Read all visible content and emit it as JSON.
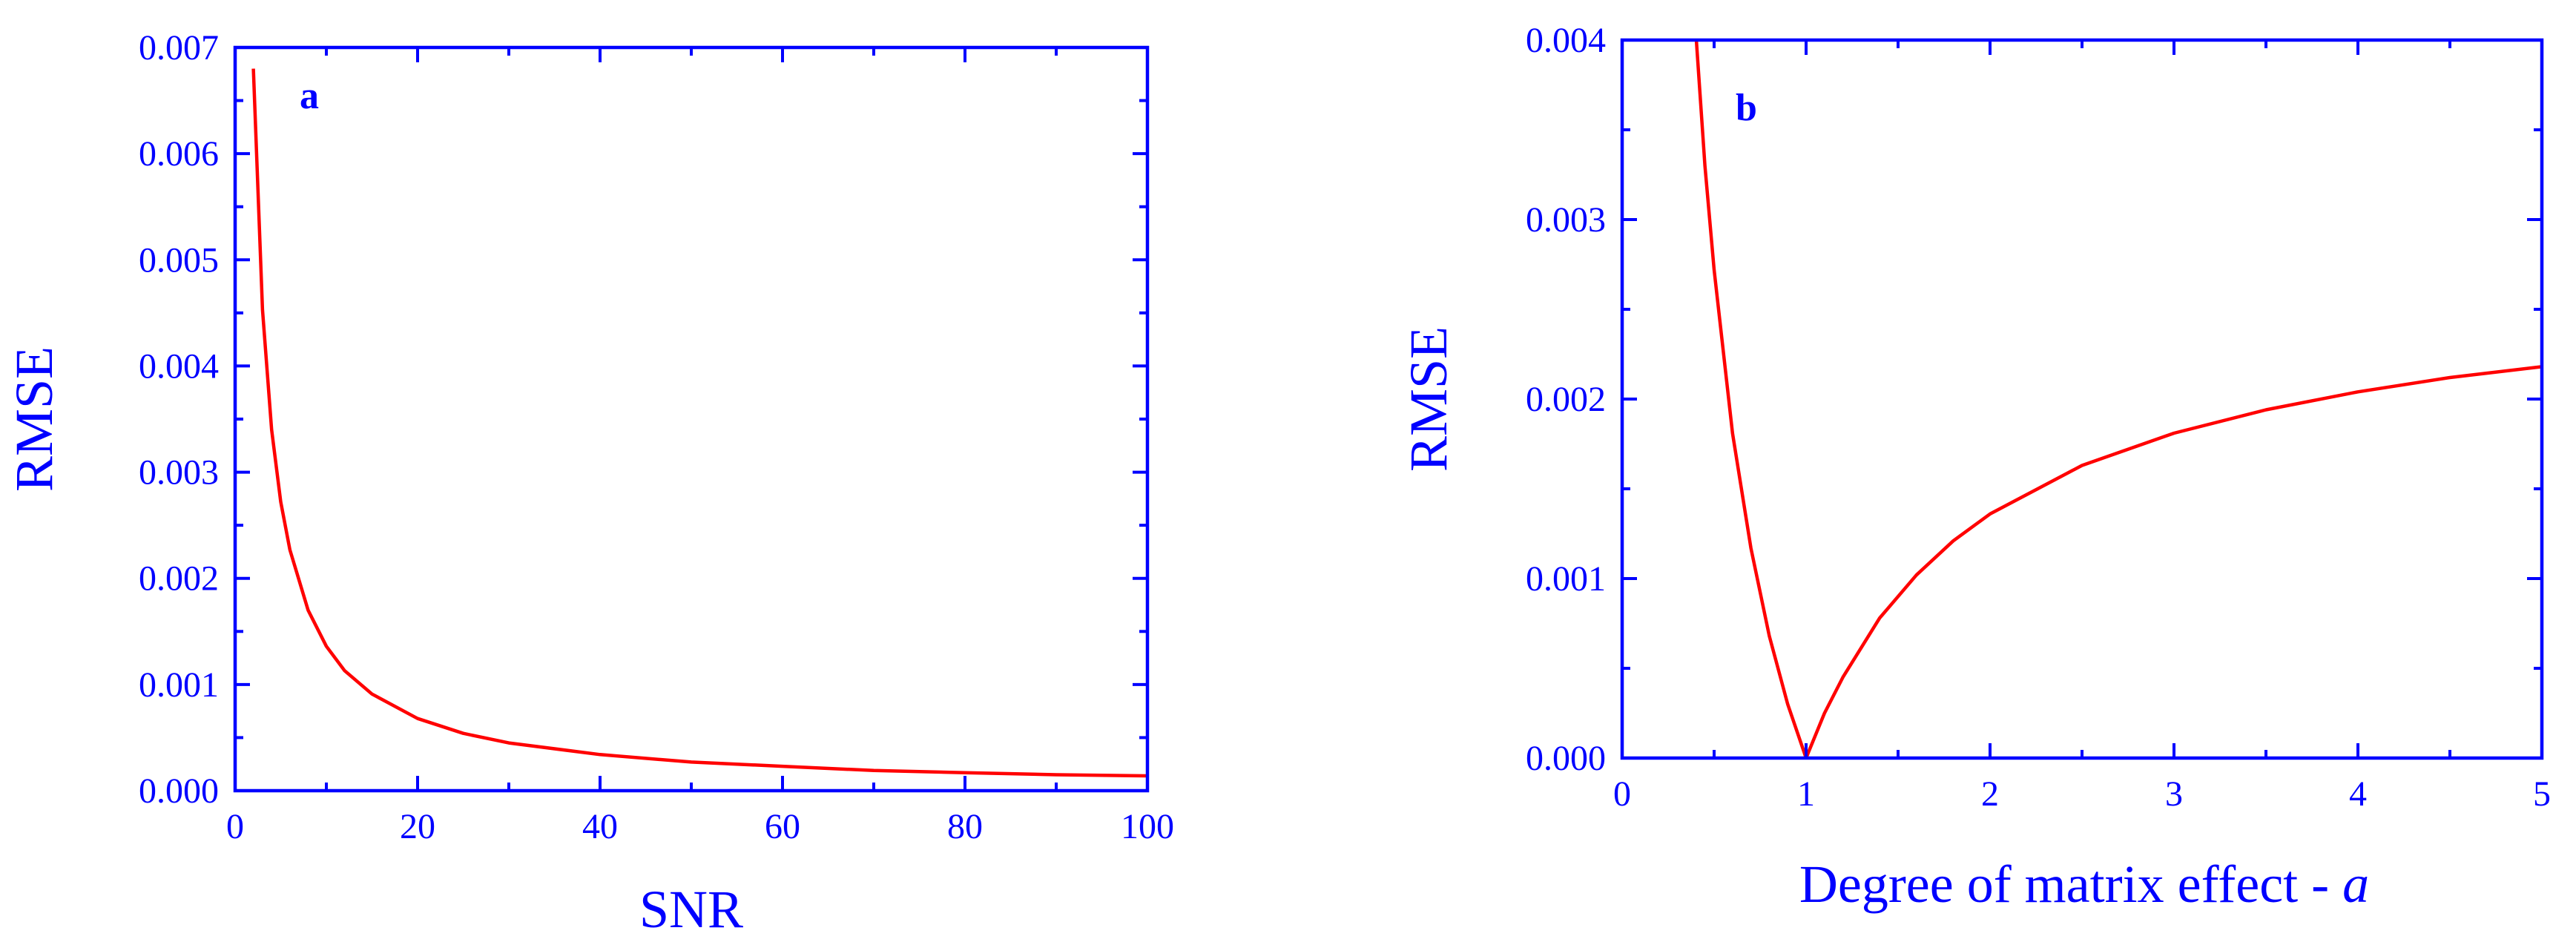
{
  "chart_data": [
    {
      "type": "line",
      "panel_label": "a",
      "xlabel": "SNR",
      "ylabel": "RMSE",
      "xlim": [
        0,
        100
      ],
      "ylim": [
        0,
        0.007
      ],
      "xticks": [
        "0",
        "20",
        "40",
        "60",
        "80",
        "100"
      ],
      "yticks": [
        "0.000",
        "0.001",
        "0.002",
        "0.003",
        "0.004",
        "0.005",
        "0.006",
        "0.007"
      ],
      "grid": false,
      "series_color": "#ff0000",
      "series": [
        {
          "x": [
            2,
            3,
            4,
            5,
            6,
            8,
            10,
            12,
            15,
            20,
            25,
            30,
            40,
            50,
            60,
            70,
            80,
            90,
            100
          ],
          "y": [
            0.0068,
            0.00453,
            0.0034,
            0.00272,
            0.00227,
            0.0017,
            0.00136,
            0.00113,
            0.00091,
            0.00068,
            0.00054,
            0.00045,
            0.00034,
            0.00027,
            0.00023,
            0.00019,
            0.00017,
            0.00015,
            0.00014
          ]
        }
      ]
    },
    {
      "type": "line",
      "panel_label": "b",
      "xlabel": "Degree of matrix effect - ",
      "xlabel_var": "a",
      "ylabel": "RMSE",
      "xlim": [
        0,
        5
      ],
      "ylim": [
        0,
        0.004
      ],
      "xticks": [
        "0",
        "1",
        "2",
        "3",
        "4",
        "5"
      ],
      "yticks": [
        "0.000",
        "0.001",
        "0.002",
        "0.003",
        "0.004"
      ],
      "grid": false,
      "series_color": "#ff0000",
      "series": [
        {
          "x": [
            0.4,
            0.45,
            0.5,
            0.6,
            0.7,
            0.8,
            0.9,
            1.0,
            1.1,
            1.2,
            1.4,
            1.6,
            1.8,
            2.0,
            2.5,
            3.0,
            3.5,
            4.0,
            4.5,
            5.0
          ],
          "y": [
            0.00405,
            0.0033,
            0.00272,
            0.00181,
            0.00117,
            0.00068,
            0.0003,
            0.0,
            0.00025,
            0.00045,
            0.00078,
            0.00102,
            0.00121,
            0.00136,
            0.00163,
            0.00181,
            0.00194,
            0.00204,
            0.00212,
            0.00218
          ]
        }
      ]
    }
  ]
}
